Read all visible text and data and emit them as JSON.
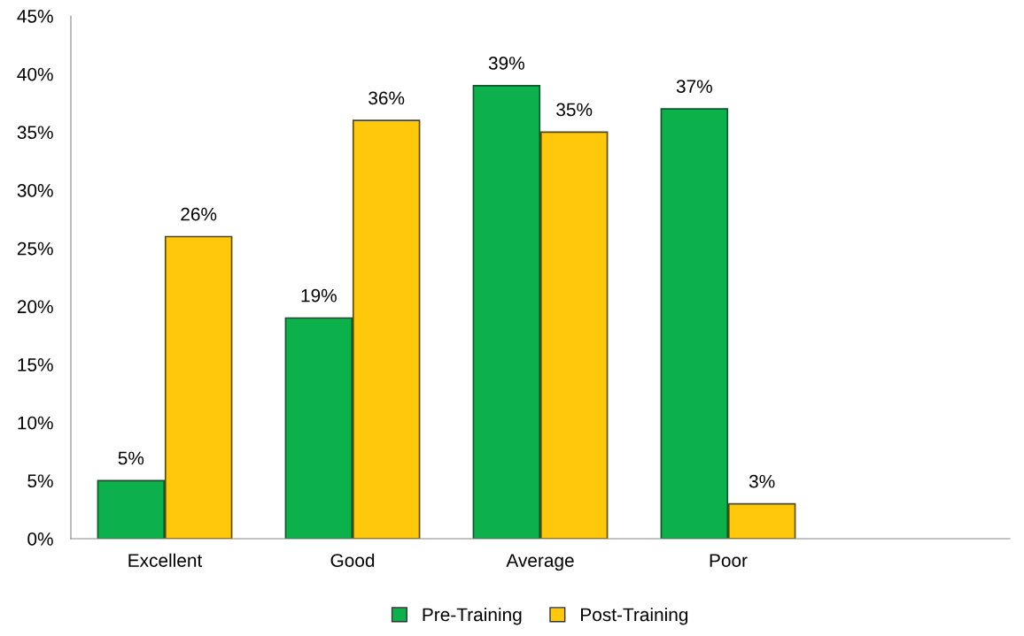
{
  "chart_data": {
    "type": "bar",
    "categories": [
      "Excellent",
      "Good",
      "Average",
      "Poor",
      null
    ],
    "series": [
      {
        "name": "Pre-Training",
        "color": "#0db14b",
        "values": [
          5,
          19,
          39,
          37,
          null
        ],
        "value_labels": [
          "5%",
          "19%",
          "39%",
          "37%",
          null
        ]
      },
      {
        "name": "Post-Training",
        "color": "#ffc80a",
        "values": [
          26,
          36,
          35,
          3,
          null
        ],
        "value_labels": [
          "26%",
          "36%",
          "35%",
          "3%",
          null
        ]
      }
    ],
    "ylim": [
      0,
      45
    ],
    "yticks": [
      {
        "value": 0,
        "label": "0%"
      },
      {
        "value": 5,
        "label": "5%"
      },
      {
        "value": 10,
        "label": "10%"
      },
      {
        "value": 15,
        "label": "15%"
      },
      {
        "value": 20,
        "label": "20%"
      },
      {
        "value": 25,
        "label": "25%"
      },
      {
        "value": 30,
        "label": "30%"
      },
      {
        "value": 35,
        "label": "35%"
      },
      {
        "value": 40,
        "label": "40%"
      },
      {
        "value": 45,
        "label": "45%"
      }
    ],
    "grid": false,
    "legend": "bottom"
  }
}
